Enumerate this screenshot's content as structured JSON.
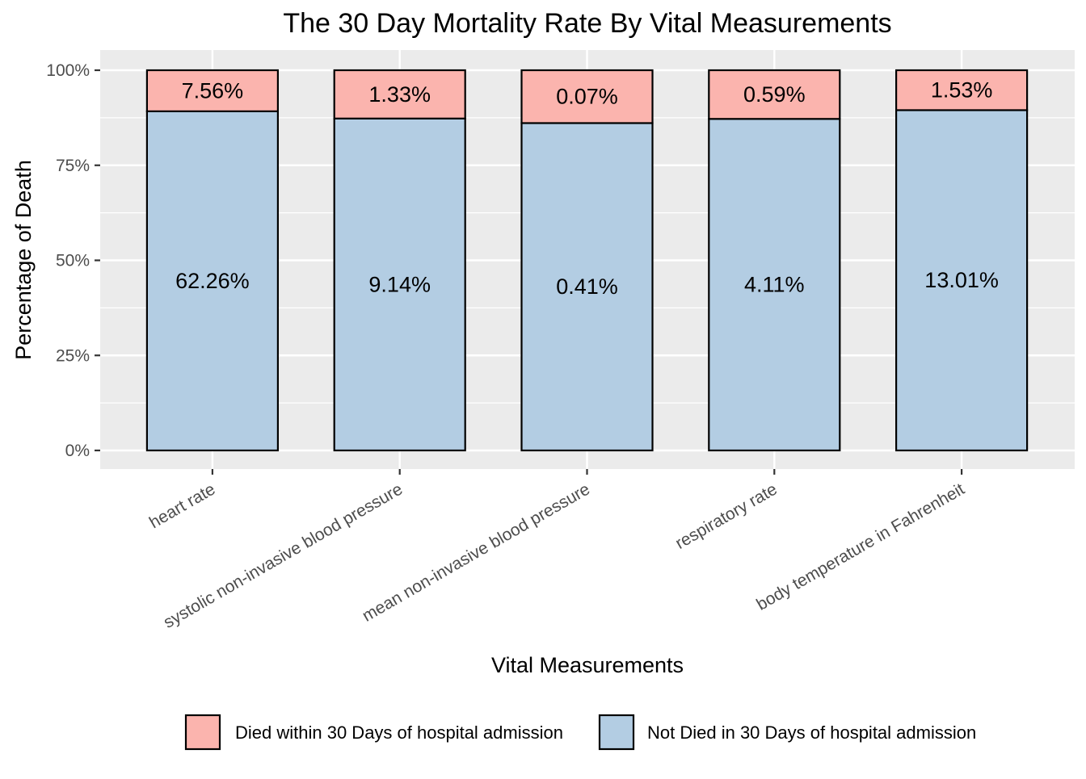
{
  "chart_data": {
    "type": "bar",
    "stacked": true,
    "title": "The 30 Day Mortality Rate By Vital Measurements",
    "xlabel": "Vital Measurements",
    "ylabel": "Percentage of Death",
    "ylim": [
      0,
      100
    ],
    "yticks": [
      0,
      25,
      50,
      75,
      100
    ],
    "ytick_labels": [
      "0%",
      "25%",
      "50%",
      "75%",
      "100%"
    ],
    "grid": true,
    "legend_position": "bottom",
    "categories": [
      "heart rate",
      "systolic non-invasive blood pressure",
      "mean non-invasive blood pressure",
      "respiratory rate",
      "body temperature in Fahrenheit"
    ],
    "series": [
      {
        "name": "Died within 30 Days of hospital admission",
        "color": "#FBB4AE",
        "values": [
          10.8,
          12.7,
          13.9,
          12.8,
          10.5
        ],
        "labels": [
          "7.56%",
          "1.33%",
          "0.07%",
          "0.59%",
          "1.53%"
        ]
      },
      {
        "name": "Not Died in 30 Days of hospital admission",
        "color": "#B3CDE3",
        "values": [
          89.2,
          87.3,
          86.1,
          87.2,
          89.5
        ],
        "labels": [
          "62.26%",
          "9.14%",
          "0.41%",
          "4.11%",
          "13.01%"
        ]
      }
    ],
    "panel_background": "#EBEBEB",
    "gridline_color": "#FFFFFF",
    "bar_outline_color": "#000000"
  }
}
